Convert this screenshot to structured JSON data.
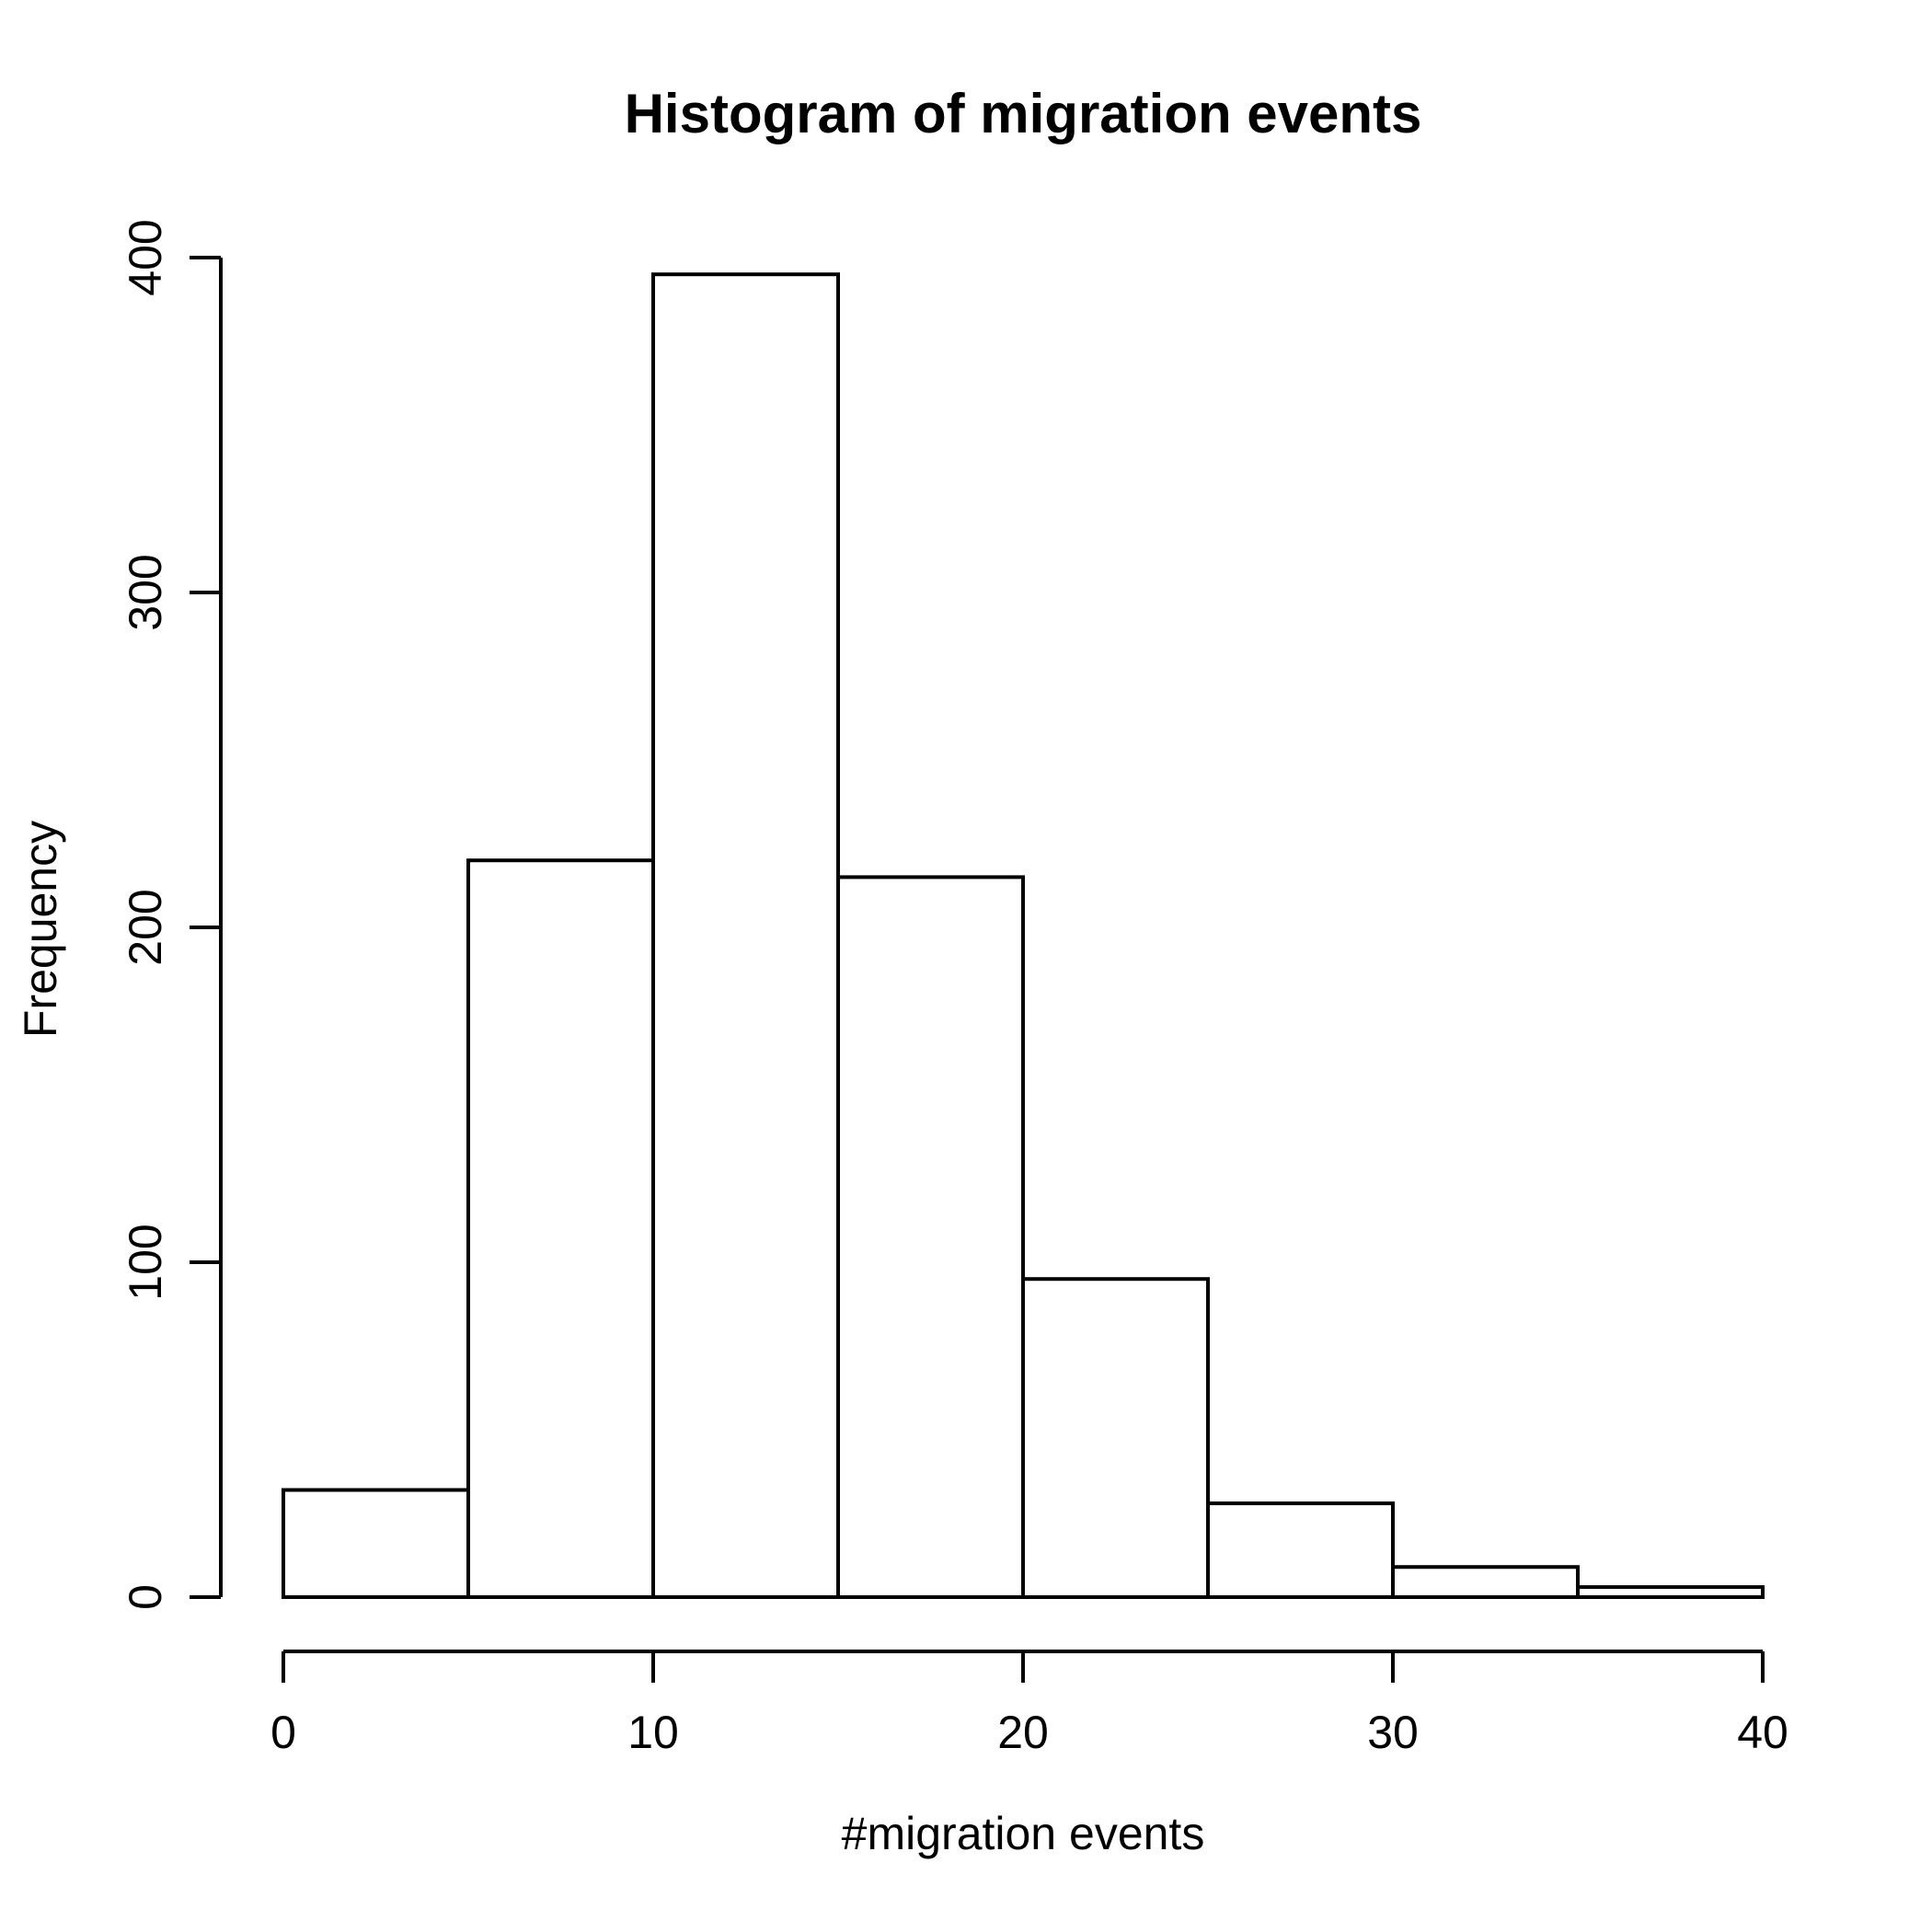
{
  "title": "Histogram of migration events",
  "chart_data": {
    "type": "bar",
    "subtype": "histogram",
    "title": "Histogram of migration events",
    "xlabel": "#migration events",
    "ylabel": "Frequency",
    "bin_width": 5,
    "bin_edges": [
      0,
      5,
      10,
      15,
      20,
      25,
      30,
      35,
      40
    ],
    "categories": [
      "0-5",
      "5-10",
      "10-15",
      "15-20",
      "20-25",
      "25-30",
      "30-35",
      "35-40"
    ],
    "values": [
      32,
      220,
      395,
      215,
      95,
      28,
      9,
      3
    ],
    "xlim": [
      0,
      40
    ],
    "ylim": [
      0,
      400
    ],
    "x_ticks": [
      0,
      10,
      20,
      30,
      40
    ],
    "y_ticks": [
      0,
      100,
      200,
      300,
      400
    ],
    "grid": false,
    "legend": "none",
    "bar_fill": "#ffffff",
    "bar_stroke": "#000000",
    "axis_color": "#000000",
    "text_color": "#000000",
    "background": "#ffffff"
  }
}
